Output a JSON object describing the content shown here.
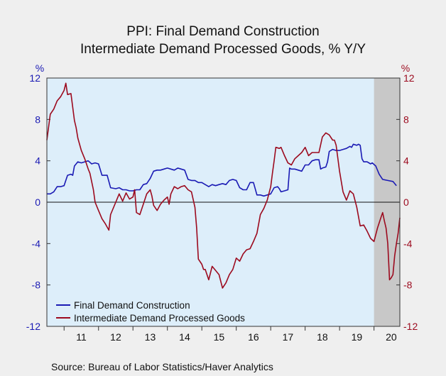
{
  "chart_data": {
    "type": "line",
    "title_lines": [
      "PPI: Final Demand Construction",
      "Intermediate Demand Processed Goods, % Y/Y"
    ],
    "left_axis_unit": "%",
    "right_axis_unit": "%",
    "ylim": [
      -12,
      12
    ],
    "y_ticks": [
      12,
      8,
      4,
      0,
      -4,
      -8,
      -12
    ],
    "x_range": [
      2010.5,
      2020.75
    ],
    "x_tick_labels": [
      "11",
      "12",
      "13",
      "14",
      "15",
      "16",
      "17",
      "18",
      "19",
      "20"
    ],
    "recession_shading": [
      2020.0,
      2020.75
    ],
    "series": [
      {
        "name": "Final Demand Construction",
        "color": "#1a1ab4",
        "axis": "left",
        "points": [
          [
            2010.5,
            0.8
          ],
          [
            2010.6,
            0.8
          ],
          [
            2010.7,
            1.0
          ],
          [
            2010.8,
            1.5
          ],
          [
            2010.9,
            1.5
          ],
          [
            2011.0,
            1.6
          ],
          [
            2011.1,
            2.6
          ],
          [
            2011.2,
            2.7
          ],
          [
            2011.25,
            2.6
          ],
          [
            2011.3,
            3.5
          ],
          [
            2011.4,
            3.9
          ],
          [
            2011.5,
            3.8
          ],
          [
            2011.6,
            3.9
          ],
          [
            2011.7,
            4.0
          ],
          [
            2011.8,
            3.7
          ],
          [
            2011.9,
            3.8
          ],
          [
            2012.0,
            3.7
          ],
          [
            2012.1,
            2.6
          ],
          [
            2012.25,
            2.6
          ],
          [
            2012.35,
            1.4
          ],
          [
            2012.5,
            1.3
          ],
          [
            2012.6,
            1.4
          ],
          [
            2012.7,
            1.2
          ],
          [
            2012.8,
            1.2
          ],
          [
            2012.9,
            1.1
          ],
          [
            2013.0,
            1.1
          ],
          [
            2013.1,
            1.2
          ],
          [
            2013.2,
            1.2
          ],
          [
            2013.3,
            1.7
          ],
          [
            2013.4,
            1.8
          ],
          [
            2013.5,
            2.3
          ],
          [
            2013.6,
            3.0
          ],
          [
            2013.7,
            3.1
          ],
          [
            2013.8,
            3.1
          ],
          [
            2013.9,
            3.2
          ],
          [
            2014.0,
            3.3
          ],
          [
            2014.1,
            3.2
          ],
          [
            2014.2,
            3.1
          ],
          [
            2014.3,
            3.3
          ],
          [
            2014.4,
            3.2
          ],
          [
            2014.5,
            3.1
          ],
          [
            2014.6,
            2.2
          ],
          [
            2014.7,
            2.1
          ],
          [
            2014.8,
            2.1
          ],
          [
            2014.9,
            1.9
          ],
          [
            2015.0,
            1.9
          ],
          [
            2015.1,
            1.7
          ],
          [
            2015.2,
            1.5
          ],
          [
            2015.3,
            1.7
          ],
          [
            2015.4,
            1.6
          ],
          [
            2015.5,
            1.7
          ],
          [
            2015.6,
            1.8
          ],
          [
            2015.7,
            1.7
          ],
          [
            2015.8,
            2.1
          ],
          [
            2015.9,
            2.2
          ],
          [
            2016.0,
            2.1
          ],
          [
            2016.1,
            1.4
          ],
          [
            2016.2,
            1.2
          ],
          [
            2016.3,
            1.2
          ],
          [
            2016.4,
            1.9
          ],
          [
            2016.5,
            1.9
          ],
          [
            2016.6,
            0.7
          ],
          [
            2016.7,
            0.7
          ],
          [
            2016.8,
            0.6
          ],
          [
            2016.9,
            0.7
          ],
          [
            2017.0,
            0.8
          ],
          [
            2017.1,
            1.4
          ],
          [
            2017.2,
            1.5
          ],
          [
            2017.25,
            1.3
          ],
          [
            2017.3,
            1.0
          ],
          [
            2017.4,
            1.1
          ],
          [
            2017.5,
            1.2
          ],
          [
            2017.55,
            3.3
          ],
          [
            2017.6,
            3.2
          ],
          [
            2017.7,
            3.2
          ],
          [
            2017.8,
            3.1
          ],
          [
            2017.9,
            3.0
          ],
          [
            2018.0,
            3.6
          ],
          [
            2018.1,
            3.6
          ],
          [
            2018.2,
            4.0
          ],
          [
            2018.3,
            4.1
          ],
          [
            2018.4,
            4.1
          ],
          [
            2018.45,
            3.2
          ],
          [
            2018.5,
            3.3
          ],
          [
            2018.6,
            3.4
          ],
          [
            2018.65,
            3.9
          ],
          [
            2018.7,
            4.9
          ],
          [
            2018.8,
            5.1
          ],
          [
            2018.9,
            5.0
          ],
          [
            2019.0,
            5.0
          ],
          [
            2019.1,
            5.1
          ],
          [
            2019.2,
            5.2
          ],
          [
            2019.3,
            5.4
          ],
          [
            2019.35,
            5.3
          ],
          [
            2019.4,
            5.6
          ],
          [
            2019.5,
            5.5
          ],
          [
            2019.55,
            5.6
          ],
          [
            2019.6,
            5.5
          ],
          [
            2019.65,
            4.2
          ],
          [
            2019.7,
            3.9
          ],
          [
            2019.8,
            3.9
          ],
          [
            2019.9,
            3.7
          ],
          [
            2019.95,
            3.8
          ],
          [
            2020.05,
            3.5
          ],
          [
            2020.15,
            2.7
          ],
          [
            2020.25,
            2.2
          ],
          [
            2020.4,
            2.1
          ],
          [
            2020.55,
            2.0
          ],
          [
            2020.65,
            1.6
          ]
        ]
      },
      {
        "name": "Intermediate Demand Processed Goods",
        "color": "#9c0a1e",
        "axis": "right",
        "points": [
          [
            2010.5,
            6.0
          ],
          [
            2010.6,
            8.5
          ],
          [
            2010.7,
            9.0
          ],
          [
            2010.8,
            9.8
          ],
          [
            2010.9,
            10.2
          ],
          [
            2011.0,
            10.8
          ],
          [
            2011.05,
            11.5
          ],
          [
            2011.1,
            10.4
          ],
          [
            2011.2,
            10.5
          ],
          [
            2011.3,
            7.9
          ],
          [
            2011.35,
            7.2
          ],
          [
            2011.4,
            6.2
          ],
          [
            2011.5,
            5.0
          ],
          [
            2011.6,
            4.2
          ],
          [
            2011.7,
            3.2
          ],
          [
            2011.75,
            2.8
          ],
          [
            2011.85,
            1.2
          ],
          [
            2011.9,
            0.0
          ],
          [
            2012.0,
            -0.8
          ],
          [
            2012.1,
            -1.6
          ],
          [
            2012.2,
            -2.1
          ],
          [
            2012.3,
            -2.7
          ],
          [
            2012.35,
            -1.2
          ],
          [
            2012.5,
            0.0
          ],
          [
            2012.6,
            0.8
          ],
          [
            2012.7,
            0.1
          ],
          [
            2012.8,
            0.9
          ],
          [
            2012.9,
            0.3
          ],
          [
            2013.0,
            0.5
          ],
          [
            2013.05,
            1.2
          ],
          [
            2013.1,
            -1.0
          ],
          [
            2013.2,
            -1.2
          ],
          [
            2013.3,
            -0.2
          ],
          [
            2013.4,
            0.8
          ],
          [
            2013.5,
            1.2
          ],
          [
            2013.55,
            0.6
          ],
          [
            2013.6,
            -0.3
          ],
          [
            2013.7,
            -0.8
          ],
          [
            2013.8,
            -0.2
          ],
          [
            2013.9,
            0.2
          ],
          [
            2014.0,
            0.5
          ],
          [
            2014.05,
            -0.2
          ],
          [
            2014.1,
            0.8
          ],
          [
            2014.2,
            1.5
          ],
          [
            2014.3,
            1.3
          ],
          [
            2014.4,
            1.5
          ],
          [
            2014.5,
            1.6
          ],
          [
            2014.6,
            1.2
          ],
          [
            2014.7,
            1.0
          ],
          [
            2014.8,
            -0.5
          ],
          [
            2014.85,
            -2.5
          ],
          [
            2014.9,
            -5.5
          ],
          [
            2015.0,
            -6.0
          ],
          [
            2015.05,
            -6.5
          ],
          [
            2015.1,
            -6.5
          ],
          [
            2015.2,
            -7.5
          ],
          [
            2015.3,
            -6.2
          ],
          [
            2015.4,
            -6.6
          ],
          [
            2015.5,
            -7.0
          ],
          [
            2015.6,
            -8.3
          ],
          [
            2015.7,
            -7.8
          ],
          [
            2015.8,
            -7.0
          ],
          [
            2015.9,
            -6.5
          ],
          [
            2016.0,
            -5.4
          ],
          [
            2016.1,
            -5.7
          ],
          [
            2016.2,
            -5.0
          ],
          [
            2016.3,
            -4.6
          ],
          [
            2016.4,
            -4.5
          ],
          [
            2016.5,
            -3.8
          ],
          [
            2016.6,
            -3.0
          ],
          [
            2016.7,
            -1.2
          ],
          [
            2016.8,
            -0.6
          ],
          [
            2016.9,
            0.2
          ],
          [
            2017.0,
            1.5
          ],
          [
            2017.05,
            2.8
          ],
          [
            2017.1,
            4.0
          ],
          [
            2017.15,
            5.3
          ],
          [
            2017.25,
            5.2
          ],
          [
            2017.3,
            5.3
          ],
          [
            2017.4,
            4.5
          ],
          [
            2017.5,
            3.8
          ],
          [
            2017.6,
            3.6
          ],
          [
            2017.7,
            4.2
          ],
          [
            2017.8,
            4.5
          ],
          [
            2017.9,
            4.8
          ],
          [
            2018.0,
            5.3
          ],
          [
            2018.1,
            4.5
          ],
          [
            2018.2,
            4.8
          ],
          [
            2018.3,
            4.8
          ],
          [
            2018.4,
            4.8
          ],
          [
            2018.5,
            6.3
          ],
          [
            2018.6,
            6.7
          ],
          [
            2018.7,
            6.5
          ],
          [
            2018.8,
            6.0
          ],
          [
            2018.85,
            6.0
          ],
          [
            2018.9,
            5.5
          ],
          [
            2019.0,
            3.0
          ],
          [
            2019.1,
            1.0
          ],
          [
            2019.2,
            0.2
          ],
          [
            2019.3,
            1.1
          ],
          [
            2019.4,
            0.8
          ],
          [
            2019.5,
            -0.5
          ],
          [
            2019.6,
            -2.3
          ],
          [
            2019.7,
            -2.2
          ],
          [
            2019.8,
            -2.8
          ],
          [
            2019.9,
            -3.5
          ],
          [
            2020.0,
            -3.8
          ],
          [
            2020.1,
            -2.5
          ],
          [
            2020.2,
            -1.5
          ],
          [
            2020.25,
            -1.0
          ],
          [
            2020.3,
            -1.8
          ],
          [
            2020.35,
            -2.5
          ],
          [
            2020.4,
            -4.0
          ],
          [
            2020.45,
            -7.5
          ],
          [
            2020.5,
            -7.3
          ],
          [
            2020.55,
            -7.0
          ],
          [
            2020.6,
            -5.2
          ],
          [
            2020.65,
            -4.0
          ],
          [
            2020.7,
            -3.0
          ],
          [
            2020.75,
            -1.5
          ]
        ]
      }
    ],
    "legend_position": "bottom-left",
    "grid": false,
    "source": "Source:  Bureau of Labor Statistics/Haver Analytics"
  }
}
